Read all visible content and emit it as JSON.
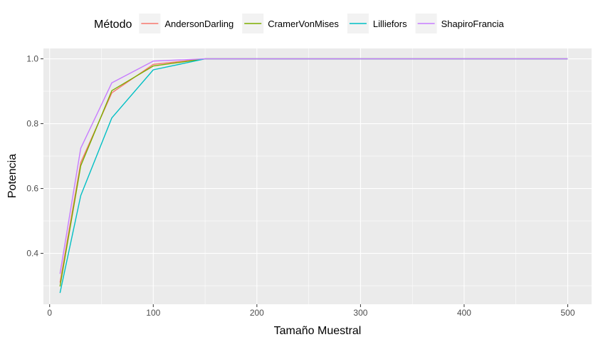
{
  "chart_data": {
    "type": "line",
    "xlabel": "Tamaño Muestral",
    "ylabel": "Potencia",
    "legend_title": "Método",
    "legend_position": "top",
    "grid": true,
    "xlim": [
      -6,
      523
    ],
    "ylim": [
      0.243,
      1.032
    ],
    "x_ticks": [
      0,
      100,
      200,
      300,
      400,
      500
    ],
    "x_minor_ticks": [
      50,
      150,
      250,
      350,
      450
    ],
    "y_ticks": [
      0.4,
      0.6,
      0.8,
      1.0
    ],
    "y_tick_labels": [
      "0.4",
      "0.6",
      "0.8",
      "1.0"
    ],
    "y_minor_ticks": [
      0.3,
      0.5,
      0.7,
      0.9
    ],
    "x_tick_labels": [
      "0",
      "100",
      "200",
      "300",
      "400",
      "500"
    ],
    "x": [
      10,
      30,
      60,
      100,
      150,
      200,
      300,
      400,
      500
    ],
    "series": [
      {
        "name": "AndersonDarling",
        "color": "#F8766D",
        "values": [
          0.31,
          0.68,
          0.895,
          0.983,
          1.0,
          1.0,
          1.0,
          1.0,
          1.0
        ]
      },
      {
        "name": "CramerVonMises",
        "color": "#7CAE00",
        "values": [
          0.298,
          0.67,
          0.902,
          0.978,
          1.0,
          1.0,
          1.0,
          1.0,
          1.0
        ]
      },
      {
        "name": "Lilliefors",
        "color": "#00BFC4",
        "values": [
          0.278,
          0.578,
          0.818,
          0.966,
          1.0,
          1.0,
          1.0,
          1.0,
          1.0
        ]
      },
      {
        "name": "ShapiroFrancia",
        "color": "#C77CFF",
        "values": [
          0.337,
          0.724,
          0.926,
          0.993,
          1.0,
          1.0,
          1.0,
          1.0,
          1.0
        ]
      }
    ]
  }
}
